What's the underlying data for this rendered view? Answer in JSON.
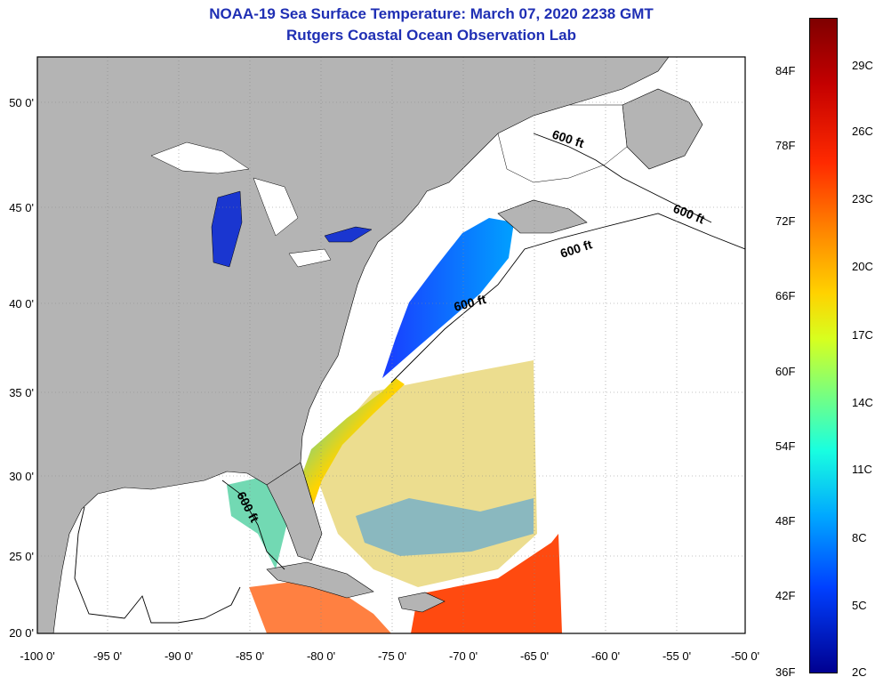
{
  "header": {
    "title": "NOAA-19 Sea Surface Temperature:  March 07, 2020 2238 GMT",
    "subtitle": "Rutgers Coastal Ocean Observation Lab"
  },
  "map": {
    "lat_labels": [
      "50 0'",
      "45 0'",
      "40 0'",
      "35 0'",
      "30 0'",
      "25 0'",
      "20 0'"
    ],
    "lon_labels": [
      "-100 0'",
      "-95 0'",
      "-90 0'",
      "-85 0'",
      "-80 0'",
      "-75 0'",
      "-70 0'",
      "-65 0'",
      "-60 0'",
      "-55 0'",
      "-50 0'"
    ],
    "contour_labels": [
      "600 ft",
      "600 ft",
      "600 ft",
      "600 ft",
      "600 ft"
    ],
    "colors": {
      "land": "#b4b4b4",
      "ocean_nodata": "#ffffff",
      "contour": "#000000"
    }
  },
  "colorbar": {
    "fahrenheit": [
      "84F",
      "78F",
      "72F",
      "66F",
      "60F",
      "54F",
      "48F",
      "42F",
      "36F"
    ],
    "celsius": [
      "29C",
      "26C",
      "23C",
      "20C",
      "17C",
      "14C",
      "11C",
      "8C",
      "5C",
      "2C"
    ]
  }
}
